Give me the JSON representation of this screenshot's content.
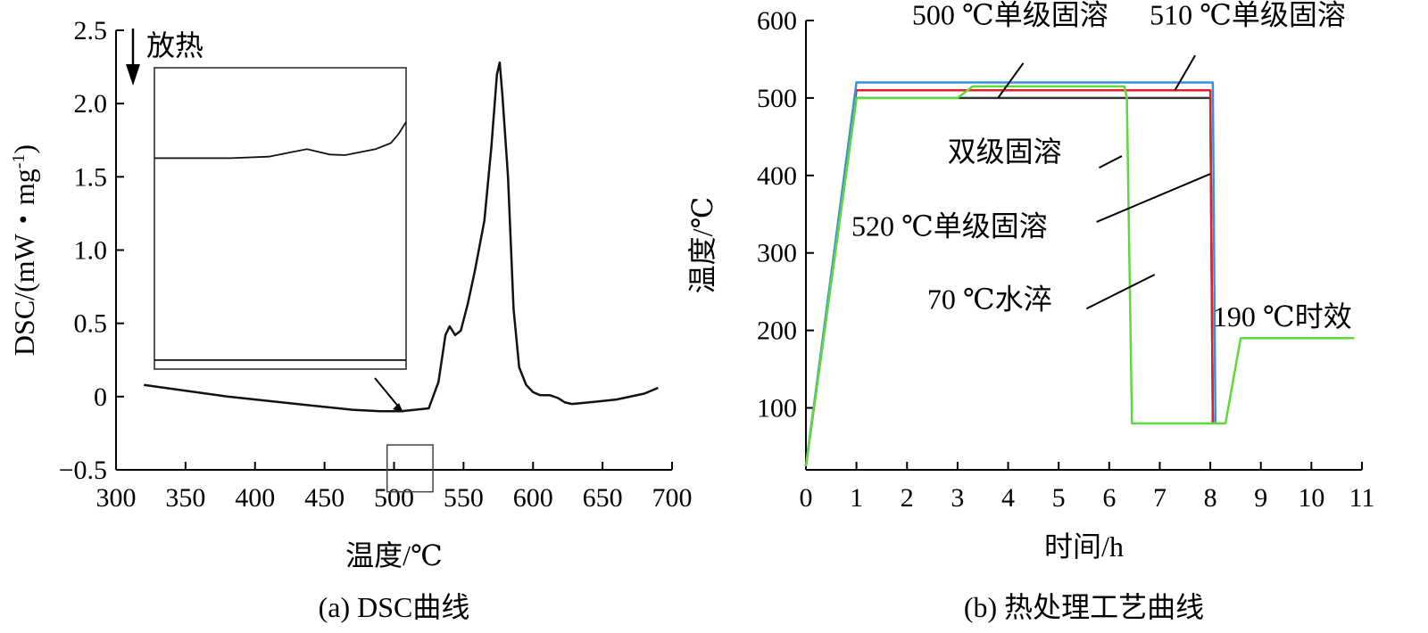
{
  "chart_data": [
    {
      "type": "line",
      "panel": "a",
      "caption": "(a) DSC曲线",
      "xlabel": "温度/℃",
      "ylabel": "DSC/(mW・mg",
      "ylabel_sup": "-1",
      "ylabel_end": ")",
      "xlim": [
        300,
        700
      ],
      "ylim": [
        -0.5,
        2.5
      ],
      "xticks": [
        300,
        350,
        400,
        450,
        500,
        550,
        600,
        650,
        700
      ],
      "yticks": [
        -0.5,
        0,
        0.5,
        1.0,
        1.5,
        2.0,
        2.5
      ],
      "ytick_labels": [
        "−0.5",
        "0",
        "0.5",
        "1.0",
        "1.5",
        "2.0",
        "2.5"
      ],
      "exo_label": "放热",
      "zoom_window": {
        "x": [
          495,
          528
        ],
        "y": [
          -0.65,
          -0.33
        ]
      },
      "inset": {
        "xlim": [
          495,
          528
        ],
        "ylim": [
          0,
          1
        ],
        "curve": [
          [
            495,
            0.7
          ],
          [
            500,
            0.7
          ],
          [
            505,
            0.7
          ],
          [
            510,
            0.705
          ],
          [
            513,
            0.72
          ],
          [
            515,
            0.73
          ],
          [
            518,
            0.712
          ],
          [
            520,
            0.71
          ],
          [
            522,
            0.72
          ],
          [
            524,
            0.73
          ],
          [
            526,
            0.75
          ],
          [
            527,
            0.78
          ],
          [
            528,
            0.82
          ]
        ],
        "baseline": 0.03
      },
      "series": [
        {
          "points": [
            [
              320,
              0.08
            ],
            [
              350,
              0.04
            ],
            [
              380,
              0.0
            ],
            [
              410,
              -0.03
            ],
            [
              440,
              -0.06
            ],
            [
              470,
              -0.09
            ],
            [
              490,
              -0.1
            ],
            [
              505,
              -0.1
            ],
            [
              515,
              -0.09
            ],
            [
              525,
              -0.08
            ],
            [
              532,
              0.1
            ],
            [
              537,
              0.42
            ],
            [
              540,
              0.48
            ],
            [
              544,
              0.42
            ],
            [
              548,
              0.45
            ],
            [
              553,
              0.63
            ],
            [
              558,
              0.85
            ],
            [
              565,
              1.2
            ],
            [
              570,
              1.7
            ],
            [
              574,
              2.2
            ],
            [
              576,
              2.28
            ],
            [
              578,
              2.05
            ],
            [
              582,
              1.5
            ],
            [
              586,
              0.6
            ],
            [
              590,
              0.2
            ],
            [
              595,
              0.08
            ],
            [
              600,
              0.03
            ],
            [
              605,
              0.01
            ],
            [
              612,
              0.01
            ],
            [
              618,
              -0.01
            ],
            [
              623,
              -0.04
            ],
            [
              628,
              -0.05
            ],
            [
              640,
              -0.04
            ],
            [
              660,
              -0.02
            ],
            [
              680,
              0.02
            ],
            [
              690,
              0.06
            ]
          ]
        }
      ]
    },
    {
      "type": "line",
      "panel": "b",
      "caption": "(b) 热处理工艺曲线",
      "xlabel": "时间/h",
      "ylabel": "温度/℃",
      "xlim": [
        0,
        11
      ],
      "ylim": [
        20,
        600
      ],
      "xticks": [
        0,
        1,
        2,
        3,
        4,
        5,
        6,
        7,
        8,
        9,
        10,
        11
      ],
      "yticks": [
        100,
        200,
        300,
        400,
        500,
        600
      ],
      "colors": {
        "single_500": "#333333",
        "single_510": "#e0202a",
        "single_520": "#3b8fd9",
        "double": "#5fd83c"
      },
      "series": [
        {
          "key": "single_500",
          "color": "#333333",
          "points": [
            [
              0,
              25
            ],
            [
              1,
              500
            ],
            [
              8,
              500
            ],
            [
              8.05,
              80
            ]
          ]
        },
        {
          "key": "single_510",
          "color": "#e0202a",
          "points": [
            [
              0,
              25
            ],
            [
              1,
              510
            ],
            [
              8,
              510
            ],
            [
              8.05,
              80
            ]
          ]
        },
        {
          "key": "single_520",
          "color": "#3b8fd9",
          "points": [
            [
              0,
              25
            ],
            [
              1,
              520
            ],
            [
              8.05,
              520
            ],
            [
              8.1,
              80
            ]
          ]
        },
        {
          "key": "double",
          "color": "#5fd83c",
          "points": [
            [
              0,
              25
            ],
            [
              1,
              500
            ],
            [
              3,
              500
            ],
            [
              3.3,
              515
            ],
            [
              6.3,
              515
            ],
            [
              6.35,
              500
            ],
            [
              6.45,
              80
            ],
            [
              8.3,
              80
            ],
            [
              8.6,
              190
            ],
            [
              10.85,
              190
            ]
          ]
        }
      ],
      "annotations": [
        {
          "text": "500 ℃单级固溶",
          "at": [
            2.1,
            595
          ],
          "pointer": [
            [
              3.8,
              500
            ],
            [
              4.3,
              545
            ]
          ]
        },
        {
          "text": "510 ℃单级固溶",
          "at": [
            6.8,
            595
          ],
          "pointer": [
            [
              7.3,
              510
            ],
            [
              7.7,
              555
            ]
          ]
        },
        {
          "text": "双级固溶",
          "at": [
            2.8,
            418
          ],
          "pointer": [
            [
              5.8,
              410
            ],
            [
              6.25,
              425
            ]
          ]
        },
        {
          "text": "520 ℃单级固溶",
          "at": [
            0.9,
            322
          ],
          "pointer": [
            [
              5.75,
              340
            ],
            [
              8.0,
              402
            ]
          ]
        },
        {
          "text": "70 ℃水淬",
          "at": [
            2.4,
            228
          ],
          "pointer": [
            [
              5.55,
              228
            ],
            [
              6.9,
              272
            ]
          ]
        },
        {
          "text": "190 ℃时效",
          "at": [
            8.05,
            205
          ],
          "pointer": null
        }
      ]
    }
  ]
}
